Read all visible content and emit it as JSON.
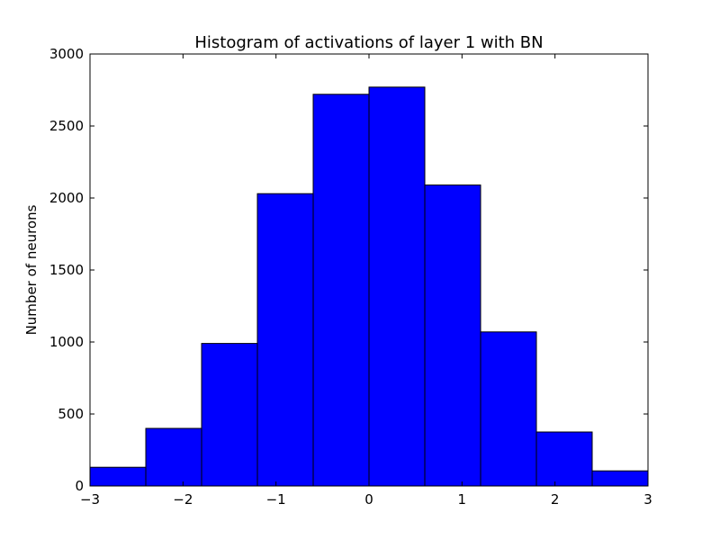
{
  "chart_data": {
    "type": "bar",
    "title": "Histogram of activations of layer 1  with BN",
    "xlabel": "",
    "ylabel": "Number of neurons",
    "xlim": [
      -3,
      3
    ],
    "ylim": [
      0,
      3000
    ],
    "bin_edges": [
      -3,
      -2.4,
      -1.8,
      -1.2,
      -0.6,
      0,
      0.6,
      1.2,
      1.8,
      2.4,
      3
    ],
    "values": [
      130,
      400,
      990,
      2030,
      2720,
      2770,
      2090,
      1070,
      375,
      105
    ],
    "x_ticks": [
      -3,
      -2,
      -1,
      0,
      1,
      2,
      3
    ],
    "x_tick_labels": [
      "−3",
      "−2",
      "−1",
      "0",
      "1",
      "2",
      "3"
    ],
    "y_ticks": [
      0,
      500,
      1000,
      1500,
      2000,
      2500,
      3000
    ],
    "y_tick_labels": [
      "0",
      "500",
      "1000",
      "1500",
      "2000",
      "2500",
      "3000"
    ],
    "bar_color": "#0000ff",
    "edge_color": "#000000",
    "grid": false,
    "legend": "none"
  }
}
